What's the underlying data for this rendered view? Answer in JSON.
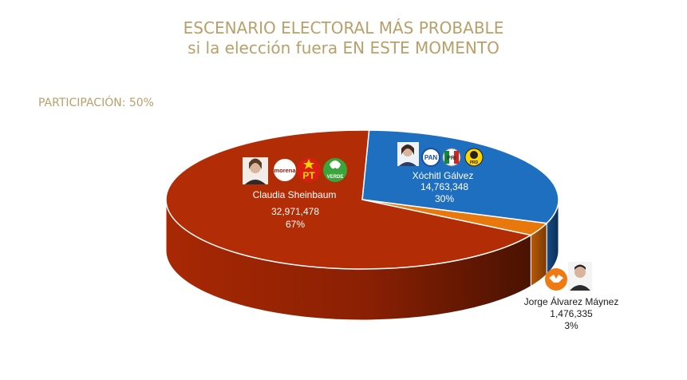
{
  "title_line1": "ESCENARIO ELECTORAL MÁS PROBABLE",
  "title_line2": "si la elección fuera EN ESTE MOMENTO",
  "participation": "PARTICIPACIÓN: 50%",
  "chart_data": {
    "type": "pie",
    "title": "ESCENARIO ELECTORAL MÁS PROBABLE si la elección fuera EN ESTE MOMENTO",
    "categories": [
      "Claudia Sheinbaum",
      "Xóchitl Gálvez",
      "Jorge Álvarez Máynez"
    ],
    "values": [
      32971478,
      14763348,
      1476335
    ],
    "value_labels": [
      "32,971,478",
      "14,763,348",
      "1,476,335"
    ],
    "percent_labels": [
      "67%",
      "30%",
      "3%"
    ],
    "colors": [
      "#b22c06",
      "#1f6fc0",
      "#e8780c"
    ],
    "party_logos": {
      "Claudia Sheinbaum": [
        "morena",
        "PT",
        "VERDE"
      ],
      "Xóchitl Gálvez": [
        "PAN",
        "PRI",
        "PRD"
      ],
      "Jorge Álvarez Máynez": [
        "MC"
      ]
    }
  },
  "colors": {
    "title": "#b8a06a",
    "claudia": "#b22c06",
    "xochitl": "#1f6fc0",
    "jorge": "#e8780c"
  },
  "icons": [
    "candidate-photo-icon",
    "morena-logo-icon",
    "pt-logo-icon",
    "verde-logo-icon",
    "pan-logo-icon",
    "pri-logo-icon",
    "prd-logo-icon",
    "mc-logo-icon"
  ]
}
